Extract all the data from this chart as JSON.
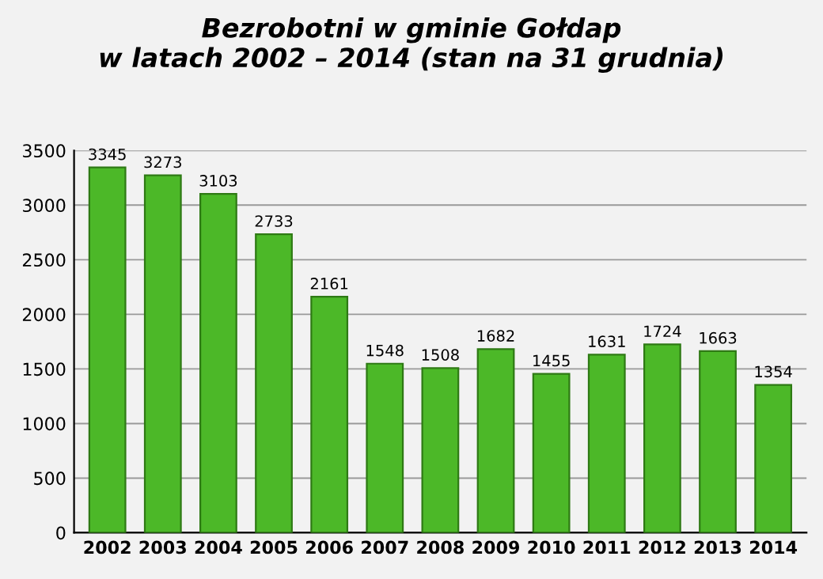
{
  "chart_data": {
    "type": "bar",
    "title": "Bezrobotni w gminie Gołdap\nw latach 2002 – 2014 (stan na 31 grudnia)",
    "categories": [
      "2002",
      "2003",
      "2004",
      "2005",
      "2006",
      "2007",
      "2008",
      "2009",
      "2010",
      "2011",
      "2012",
      "2013",
      "2014"
    ],
    "values": [
      3345,
      3273,
      3103,
      2733,
      2161,
      1548,
      1508,
      1682,
      1455,
      1631,
      1724,
      1663,
      1354
    ],
    "color": "#4cb828",
    "ylim": [
      0,
      3500
    ],
    "yticks": [
      0,
      500,
      1000,
      1500,
      2000,
      2500,
      3000,
      3500
    ],
    "grid": "y",
    "data_labels": true
  }
}
